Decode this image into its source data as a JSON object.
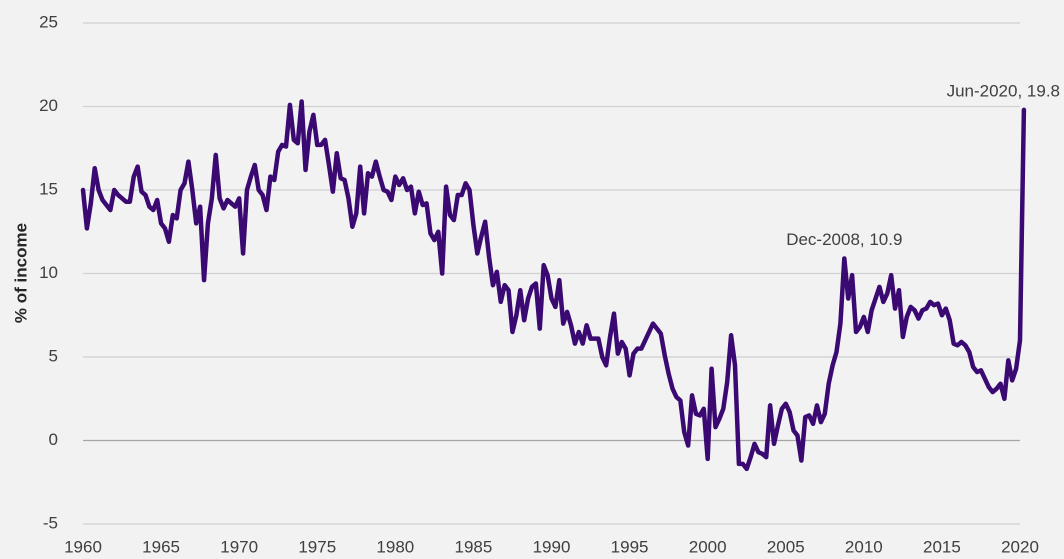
{
  "chart_data": {
    "type": "line",
    "ylabel": "% of income",
    "x": [
      1960,
      1960.25,
      1960.5,
      1960.75,
      1961,
      1961.25,
      1961.5,
      1961.75,
      1962,
      1962.25,
      1962.5,
      1962.75,
      1963,
      1963.25,
      1963.5,
      1963.75,
      1964,
      1964.25,
      1964.5,
      1964.75,
      1965,
      1965.25,
      1965.5,
      1965.75,
      1966,
      1966.25,
      1966.5,
      1966.75,
      1967,
      1967.25,
      1967.5,
      1967.75,
      1968,
      1968.25,
      1968.5,
      1968.75,
      1969,
      1969.25,
      1969.5,
      1969.75,
      1970,
      1970.25,
      1970.5,
      1970.75,
      1971,
      1971.25,
      1971.5,
      1971.75,
      1972,
      1972.25,
      1972.5,
      1972.75,
      1973,
      1973.25,
      1973.5,
      1973.75,
      1974,
      1974.25,
      1974.5,
      1974.75,
      1975,
      1975.25,
      1975.5,
      1975.75,
      1976,
      1976.25,
      1976.5,
      1976.75,
      1977,
      1977.25,
      1977.5,
      1977.75,
      1978,
      1978.25,
      1978.5,
      1978.75,
      1979,
      1979.25,
      1979.5,
      1979.75,
      1980,
      1980.25,
      1980.5,
      1980.75,
      1981,
      1981.25,
      1981.5,
      1981.75,
      1982,
      1982.25,
      1982.5,
      1982.75,
      1983,
      1983.25,
      1983.5,
      1983.75,
      1984,
      1984.25,
      1984.5,
      1984.75,
      1985,
      1985.25,
      1985.5,
      1985.75,
      1986,
      1986.25,
      1986.5,
      1986.75,
      1987,
      1987.25,
      1987.5,
      1987.75,
      1988,
      1988.25,
      1988.5,
      1988.75,
      1989,
      1989.25,
      1989.5,
      1989.75,
      1990,
      1990.25,
      1990.5,
      1990.75,
      1991,
      1991.25,
      1991.5,
      1991.75,
      1992,
      1992.25,
      1992.5,
      1992.75,
      1993,
      1993.25,
      1993.5,
      1993.75,
      1994,
      1994.25,
      1994.5,
      1994.75,
      1995,
      1995.25,
      1995.5,
      1995.75,
      1996,
      1996.25,
      1996.5,
      1996.75,
      1997,
      1997.25,
      1997.5,
      1997.75,
      1998,
      1998.25,
      1998.5,
      1998.75,
      1999,
      1999.25,
      1999.5,
      1999.75,
      2000,
      2000.25,
      2000.5,
      2000.75,
      2001,
      2001.25,
      2001.5,
      2001.75,
      2002,
      2002.25,
      2002.5,
      2002.75,
      2003,
      2003.25,
      2003.5,
      2003.75,
      2004,
      2004.25,
      2004.5,
      2004.75,
      2005,
      2005.25,
      2005.5,
      2005.75,
      2006,
      2006.25,
      2006.5,
      2006.75,
      2007,
      2007.25,
      2007.5,
      2007.75,
      2008,
      2008.25,
      2008.5,
      2008.75,
      2009,
      2009.25,
      2009.5,
      2009.75,
      2010,
      2010.25,
      2010.5,
      2010.75,
      2011,
      2011.25,
      2011.5,
      2011.75,
      2012,
      2012.25,
      2012.5,
      2012.75,
      2013,
      2013.25,
      2013.5,
      2013.75,
      2014,
      2014.25,
      2014.5,
      2014.75,
      2015,
      2015.25,
      2015.5,
      2015.75,
      2016,
      2016.25,
      2016.5,
      2016.75,
      2017,
      2017.25,
      2017.5,
      2017.75,
      2018,
      2018.25,
      2018.5,
      2018.75,
      2019,
      2019.25,
      2019.5,
      2019.75,
      2020,
      2020.25
    ],
    "series": [
      {
        "color": "#3a0a72",
        "values": [
          15.0,
          12.7,
          14.2,
          16.3,
          15.0,
          14.4,
          14.1,
          13.8,
          15.0,
          14.7,
          14.5,
          14.3,
          14.3,
          15.8,
          16.4,
          14.9,
          14.7,
          14.0,
          13.8,
          14.4,
          13.0,
          12.7,
          11.9,
          13.5,
          13.3,
          15.0,
          15.4,
          16.7,
          15.0,
          13.0,
          14.0,
          9.6,
          13.0,
          14.5,
          17.1,
          14.5,
          13.9,
          14.4,
          14.2,
          14.0,
          14.5,
          11.2,
          15.0,
          15.8,
          16.5,
          15.0,
          14.7,
          13.8,
          15.8,
          15.6,
          17.3,
          17.7,
          17.6,
          20.1,
          18.0,
          17.8,
          20.3,
          16.2,
          18.5,
          19.5,
          17.7,
          17.7,
          18.0,
          16.5,
          14.9,
          17.2,
          15.7,
          15.6,
          14.5,
          12.8,
          13.6,
          16.4,
          13.6,
          16.0,
          15.8,
          16.7,
          15.8,
          15.0,
          14.9,
          14.4,
          15.8,
          15.3,
          15.7,
          15.0,
          15.2,
          13.6,
          14.9,
          14.1,
          14.2,
          12.4,
          12.0,
          12.5,
          10.0,
          15.2,
          13.5,
          13.2,
          14.7,
          14.7,
          15.4,
          15.0,
          12.9,
          11.2,
          12.2,
          13.1,
          11.0,
          9.3,
          10.1,
          8.3,
          9.3,
          9.0,
          6.5,
          7.5,
          9.0,
          7.2,
          8.5,
          9.2,
          9.4,
          6.7,
          10.5,
          9.9,
          8.5,
          8.0,
          9.6,
          7.0,
          7.7,
          6.9,
          5.8,
          6.5,
          5.8,
          6.9,
          6.1,
          6.1,
          6.1,
          5.0,
          4.5,
          6.2,
          7.6,
          5.2,
          5.9,
          5.5,
          3.9,
          5.2,
          5.5,
          5.5,
          6.0,
          6.5,
          7.0,
          6.7,
          6.4,
          5.1,
          4.0,
          3.1,
          2.6,
          2.4,
          0.5,
          -0.3,
          2.7,
          1.6,
          1.5,
          1.9,
          -1.1,
          4.3,
          0.8,
          1.3,
          1.9,
          3.5,
          6.3,
          4.5,
          -1.4,
          -1.4,
          -1.7,
          -1.0,
          -0.2,
          -0.7,
          -0.8,
          -1.0,
          2.1,
          -0.2,
          0.9,
          1.9,
          2.2,
          1.7,
          0.6,
          0.3,
          -1.2,
          1.4,
          1.5,
          1.0,
          2.1,
          1.1,
          1.6,
          3.4,
          4.5,
          5.3,
          7.0,
          10.9,
          8.5,
          9.9,
          6.5,
          6.8,
          7.4,
          6.5,
          7.8,
          8.5,
          9.2,
          8.3,
          8.8,
          9.9,
          7.9,
          9.0,
          6.2,
          7.4,
          8.0,
          7.8,
          7.3,
          7.8,
          7.9,
          8.3,
          8.1,
          8.2,
          7.5,
          7.9,
          7.2,
          5.8,
          5.7,
          5.9,
          5.7,
          5.3,
          4.4,
          4.1,
          4.2,
          3.7,
          3.2,
          2.9,
          3.1,
          3.4,
          2.5,
          4.8,
          3.6,
          4.3,
          6.0,
          19.8
        ]
      }
    ],
    "xlim": [
      1960,
      2020
    ],
    "xticks": [
      1960,
      1965,
      1970,
      1975,
      1980,
      1985,
      1990,
      1995,
      2000,
      2005,
      2010,
      2015,
      2020
    ],
    "ylim": [
      -5,
      25
    ],
    "yticks": [
      -5,
      0,
      5,
      10,
      15,
      20,
      25
    ],
    "grid": true,
    "annotations": [
      {
        "text": "Dec-2008, 10.9",
        "x": 2008.75,
        "y": 10.9
      },
      {
        "text": "Jun-2020, 19.8",
        "x": 2020.25,
        "y": 19.8
      }
    ]
  }
}
